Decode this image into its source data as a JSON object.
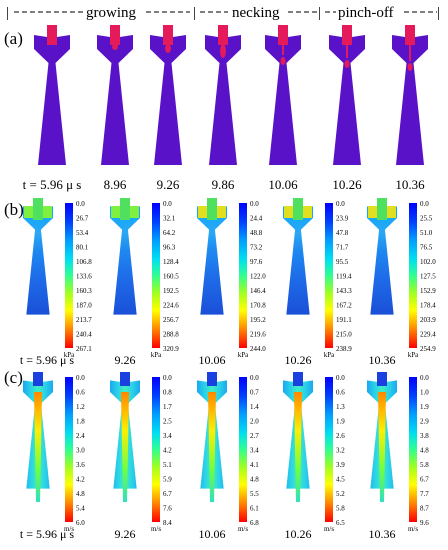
{
  "phases": {
    "growing": "growing",
    "necking": "necking",
    "pinch_off": "pinch-off"
  },
  "panels": {
    "a": {
      "label": "(a)",
      "times": [
        "t = 5.96 μ s",
        "8.96",
        "9.26",
        "9.86",
        "10.06",
        "10.26",
        "10.36"
      ],
      "colors": {
        "liquid": "#e41a5a",
        "gas": "#5a12c8"
      }
    },
    "b": {
      "label": "(b)",
      "times": [
        "t = 5.96 μ s",
        "9.26",
        "10.06",
        "10.26",
        "10.36"
      ],
      "unit": "kPa",
      "scales": [
        [
          "0.0",
          "26.7",
          "53.4",
          "80.1",
          "106.8",
          "133.6",
          "160.3",
          "187.0",
          "213.7",
          "240.4",
          "267.1"
        ],
        [
          "0.0",
          "32.1",
          "64.2",
          "96.3",
          "128.4",
          "160.5",
          "192.5",
          "224.6",
          "256.7",
          "288.8",
          "320.9"
        ],
        [
          "0.0",
          "24.4",
          "48.8",
          "73.2",
          "97.6",
          "122.0",
          "146.4",
          "170.8",
          "195.2",
          "219.6",
          "244.0"
        ],
        [
          "0.0",
          "23.9",
          "47.8",
          "71.7",
          "95.5",
          "119.4",
          "143.3",
          "167.2",
          "191.1",
          "215.0",
          "238.9"
        ],
        [
          "0.0",
          "25.5",
          "51.0",
          "76.5",
          "102.0",
          "127.5",
          "152.9",
          "178.4",
          "203.9",
          "229.4",
          "254.9"
        ]
      ]
    },
    "c": {
      "label": "(c)",
      "times": [
        "t = 5.96 μ s",
        "9.26",
        "10.06",
        "10.26",
        "10.36"
      ],
      "unit": "m/s",
      "scales": [
        [
          "0.0",
          "0.6",
          "1.2",
          "1.8",
          "2.4",
          "3.0",
          "3.6",
          "4.2",
          "4.8",
          "5.4",
          "6.0"
        ],
        [
          "0.0",
          "0.8",
          "1.7",
          "2.5",
          "3.4",
          "4.2",
          "5.1",
          "5.9",
          "6.7",
          "7.6",
          "8.4"
        ],
        [
          "0.0",
          "0.7",
          "1.4",
          "2.0",
          "2.7",
          "3.4",
          "4.1",
          "4.8",
          "5.5",
          "6.1",
          "6.8"
        ],
        [
          "0.0",
          "0.6",
          "1.3",
          "1.9",
          "2.6",
          "3.2",
          "3.9",
          "4.5",
          "5.2",
          "5.8",
          "6.5"
        ],
        [
          "0.0",
          "1.0",
          "1.9",
          "2.9",
          "3.8",
          "4.8",
          "5.8",
          "6.7",
          "7.7",
          "8.7",
          "9.6"
        ]
      ]
    }
  }
}
